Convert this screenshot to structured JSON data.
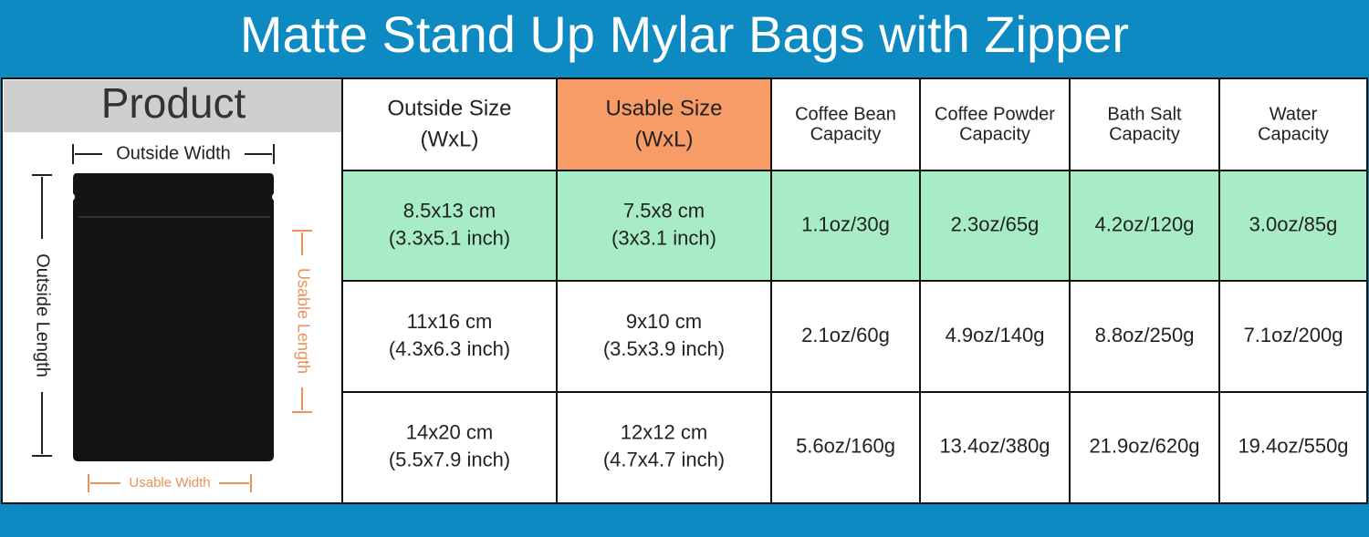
{
  "title": "Matte Stand Up Mylar Bags with Zipper",
  "product": {
    "header": "Product",
    "outside_width": "Outside Width",
    "outside_length": "Outside Length",
    "usable_length": "Usable Length",
    "usable_width": "Usable Width"
  },
  "table": {
    "header": [
      [
        "Outside Size",
        "(WxL)"
      ],
      [
        "Usable Size",
        "(WxL)"
      ],
      [
        "Coffee Bean",
        "Capacity"
      ],
      [
        "Coffee Powder",
        "Capacity"
      ],
      [
        "Bath Salt",
        "Capacity"
      ],
      [
        "Water",
        "Capacity"
      ]
    ],
    "rows": [
      [
        [
          "8.5x13 cm",
          "(3.3x5.1 inch)"
        ],
        [
          "7.5x8 cm",
          "(3x3.1 inch)"
        ],
        [
          "1.1oz/30g"
        ],
        [
          "2.3oz/65g"
        ],
        [
          "4.2oz/120g"
        ],
        [
          "3.0oz/85g"
        ]
      ],
      [
        [
          "11x16 cm",
          "(4.3x6.3 inch)"
        ],
        [
          "9x10 cm",
          "(3.5x3.9 inch)"
        ],
        [
          "2.1oz/60g"
        ],
        [
          "4.9oz/140g"
        ],
        [
          "8.8oz/250g"
        ],
        [
          "7.1oz/200g"
        ]
      ],
      [
        [
          "14x20 cm",
          "(5.5x7.9 inch)"
        ],
        [
          "12x12 cm",
          "(4.7x4.7 inch)"
        ],
        [
          "5.6oz/160g"
        ],
        [
          "13.4oz/380g"
        ],
        [
          "21.9oz/620g"
        ],
        [
          "19.4oz/550g"
        ]
      ]
    ]
  }
}
